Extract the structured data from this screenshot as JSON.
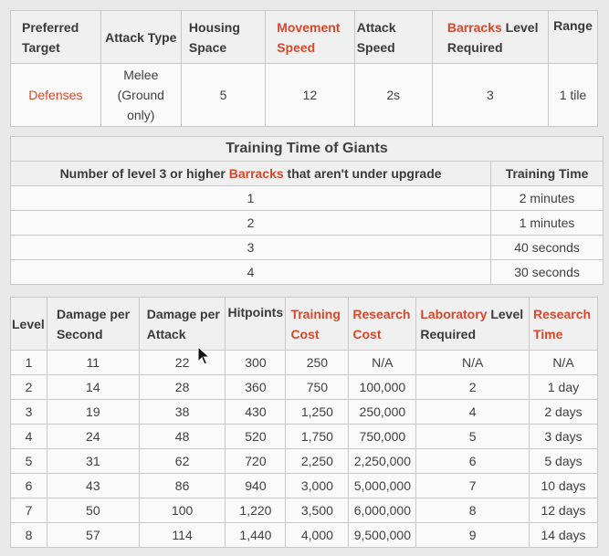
{
  "stats_table": {
    "headers": [
      {
        "text": "Preferred Target",
        "accent": ""
      },
      {
        "text": "Attack Type",
        "accent": ""
      },
      {
        "text": "Housing Space",
        "accent": ""
      },
      {
        "text": "Movement Speed",
        "accent": "link"
      },
      {
        "text": "Attack Speed",
        "accent": ""
      },
      {
        "pre": "Barracks",
        "post": " Level Required"
      },
      {
        "text": "Range",
        "accent": ""
      }
    ],
    "row": [
      "Defenses",
      "Melee (Ground only)",
      "5",
      "12",
      "2s",
      "3",
      "1 tile"
    ]
  },
  "training_table": {
    "caption": "Training Time of Giants",
    "header_pre": "Number of level 3 or higher ",
    "header_link": "Barracks",
    "header_post": " that aren't under upgrade",
    "header_time": "Training Time",
    "rows": [
      {
        "count": "1",
        "time": "2 minutes"
      },
      {
        "count": "2",
        "time": "1 minutes"
      },
      {
        "count": "3",
        "time": "40 seconds"
      },
      {
        "count": "4",
        "time": "30 seconds"
      }
    ]
  },
  "levels_table": {
    "headers": {
      "level": "Level",
      "dps": "Damage per Second",
      "dpa": "Damage per Attack",
      "hitpoints": "Hitpoints",
      "training_cost": "Training Cost",
      "research_cost": "Research Cost",
      "lab_pre": "Laboratory",
      "lab_post": " Level Required",
      "research_time": "Research Time"
    },
    "rows": [
      [
        "1",
        "11",
        "22",
        "300",
        "250",
        "N/A",
        "N/A",
        "N/A"
      ],
      [
        "2",
        "14",
        "28",
        "360",
        "750",
        "100,000",
        "2",
        "1 day"
      ],
      [
        "3",
        "19",
        "38",
        "430",
        "1,250",
        "250,000",
        "4",
        "2 days"
      ],
      [
        "4",
        "24",
        "48",
        "520",
        "1,750",
        "750,000",
        "5",
        "3 days"
      ],
      [
        "5",
        "31",
        "62",
        "720",
        "2,250",
        "2,250,000",
        "6",
        "5 days"
      ],
      [
        "6",
        "43",
        "86",
        "940",
        "3,000",
        "5,000,000",
        "7",
        "10 days"
      ],
      [
        "7",
        "50",
        "100",
        "1,220",
        "3,500",
        "6,000,000",
        "8",
        "12 days"
      ],
      [
        "8",
        "57",
        "114",
        "1,440",
        "4,000",
        "9,500,000",
        "9",
        "14 days"
      ]
    ]
  },
  "colors": {
    "link": "#d9472b",
    "header_bg": "#f0f0f0",
    "border": "#c8c8c8"
  },
  "icons": {
    "cursor": "mouse-pointer-icon"
  }
}
